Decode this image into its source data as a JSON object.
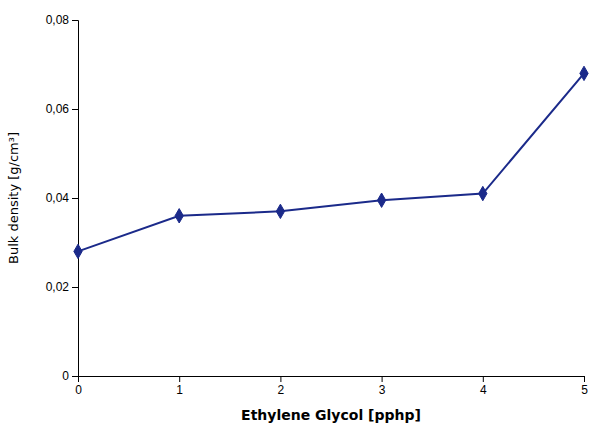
{
  "chart_data": {
    "type": "line",
    "x": [
      0,
      1,
      2,
      3,
      4,
      5
    ],
    "values": [
      0.028,
      0.036,
      0.037,
      0.0395,
      0.041,
      0.068
    ],
    "color": "#1B2A8A",
    "marker": "diamond",
    "xlabel": "Ethylene Glycol [pphp]",
    "ylabel": "Bulk density [g/cm³]",
    "xlim": [
      0,
      5
    ],
    "ylim": [
      0,
      0.08
    ],
    "xticks": [
      0,
      1,
      2,
      3,
      4,
      5
    ],
    "yticks": [
      0,
      {
        "value": 0.02,
        "label": "0,02"
      },
      {
        "value": 0.04,
        "label": "0,04"
      },
      {
        "value": 0.06,
        "label": "0,06"
      },
      {
        "value": 0.08,
        "label": "0,08"
      }
    ],
    "grid": false
  }
}
